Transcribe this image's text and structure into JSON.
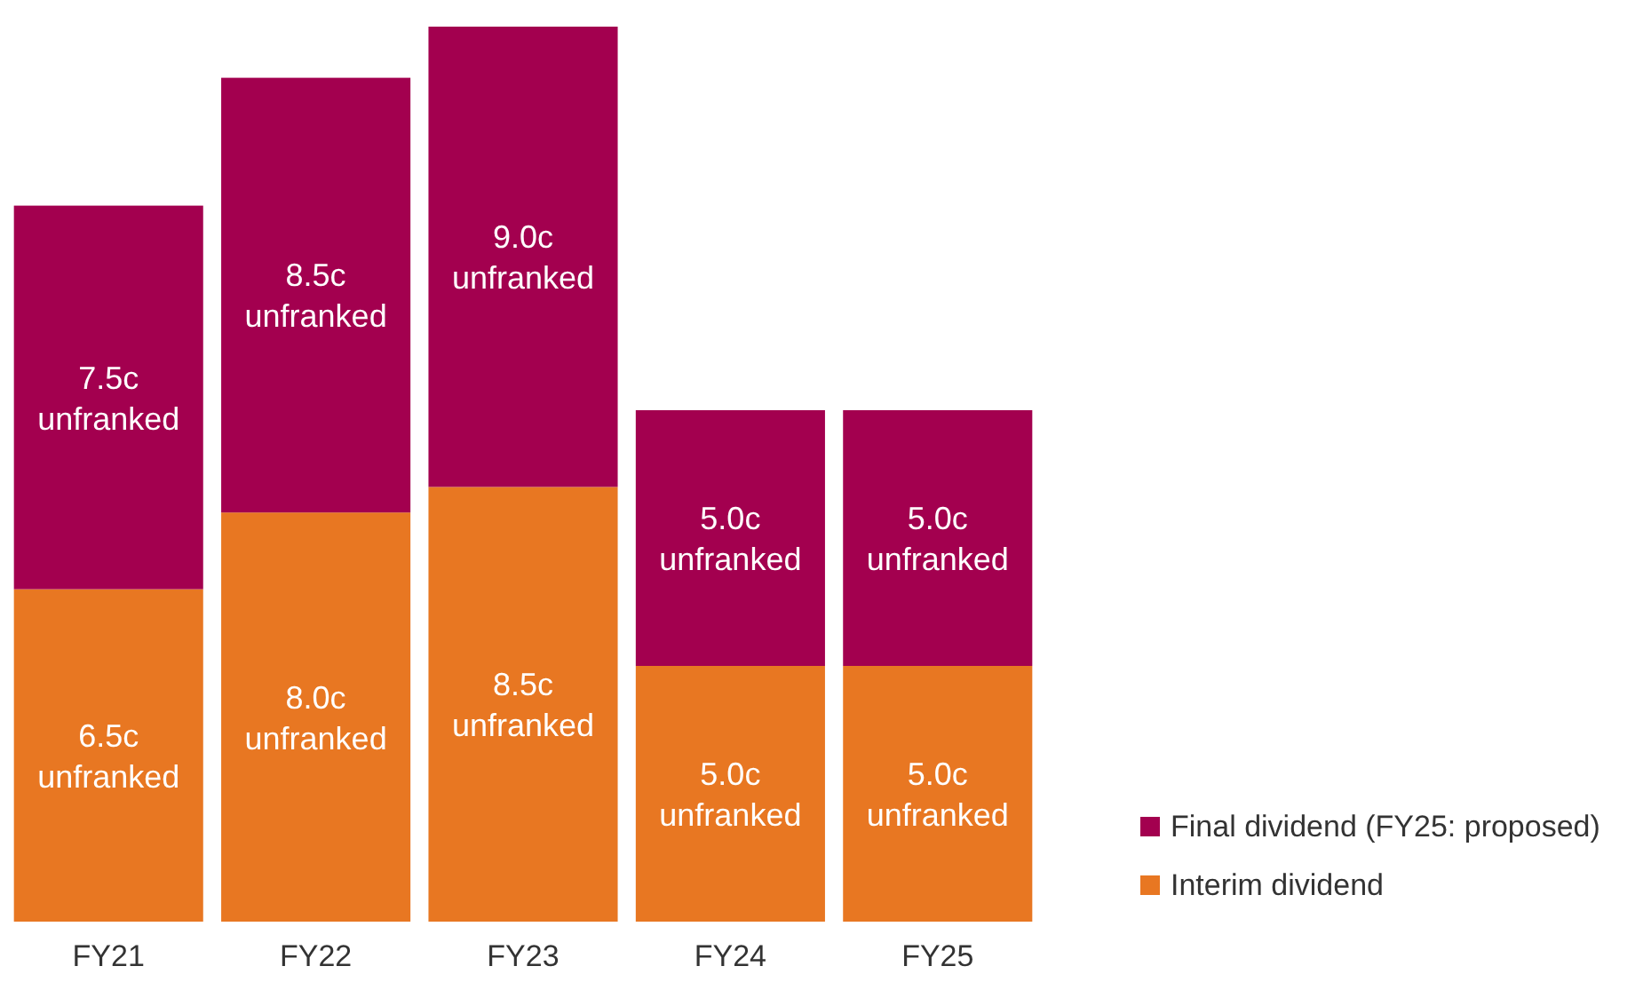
{
  "chart_data": {
    "type": "bar",
    "stacked": true,
    "categories": [
      "FY21",
      "FY22",
      "FY23",
      "FY24",
      "FY25"
    ],
    "series": [
      {
        "name": "Interim dividend",
        "color": "#e87722",
        "values": [
          6.5,
          8.0,
          8.5,
          5.0,
          5.0
        ],
        "value_labels": [
          "6.5c unfranked",
          "8.0c unfranked",
          "8.5c unfranked",
          "5.0c unfranked",
          "5.0c unfranked"
        ]
      },
      {
        "name": "Final dividend (FY25: proposed)",
        "color": "#a3004f",
        "values": [
          7.5,
          8.5,
          9.0,
          5.0,
          5.0
        ],
        "value_labels": [
          "7.5c unfranked",
          "8.5c unfranked",
          "9.0c unfranked",
          "5.0c unfranked",
          "5.0c unfranked"
        ]
      }
    ],
    "legend": "bottom right"
  }
}
